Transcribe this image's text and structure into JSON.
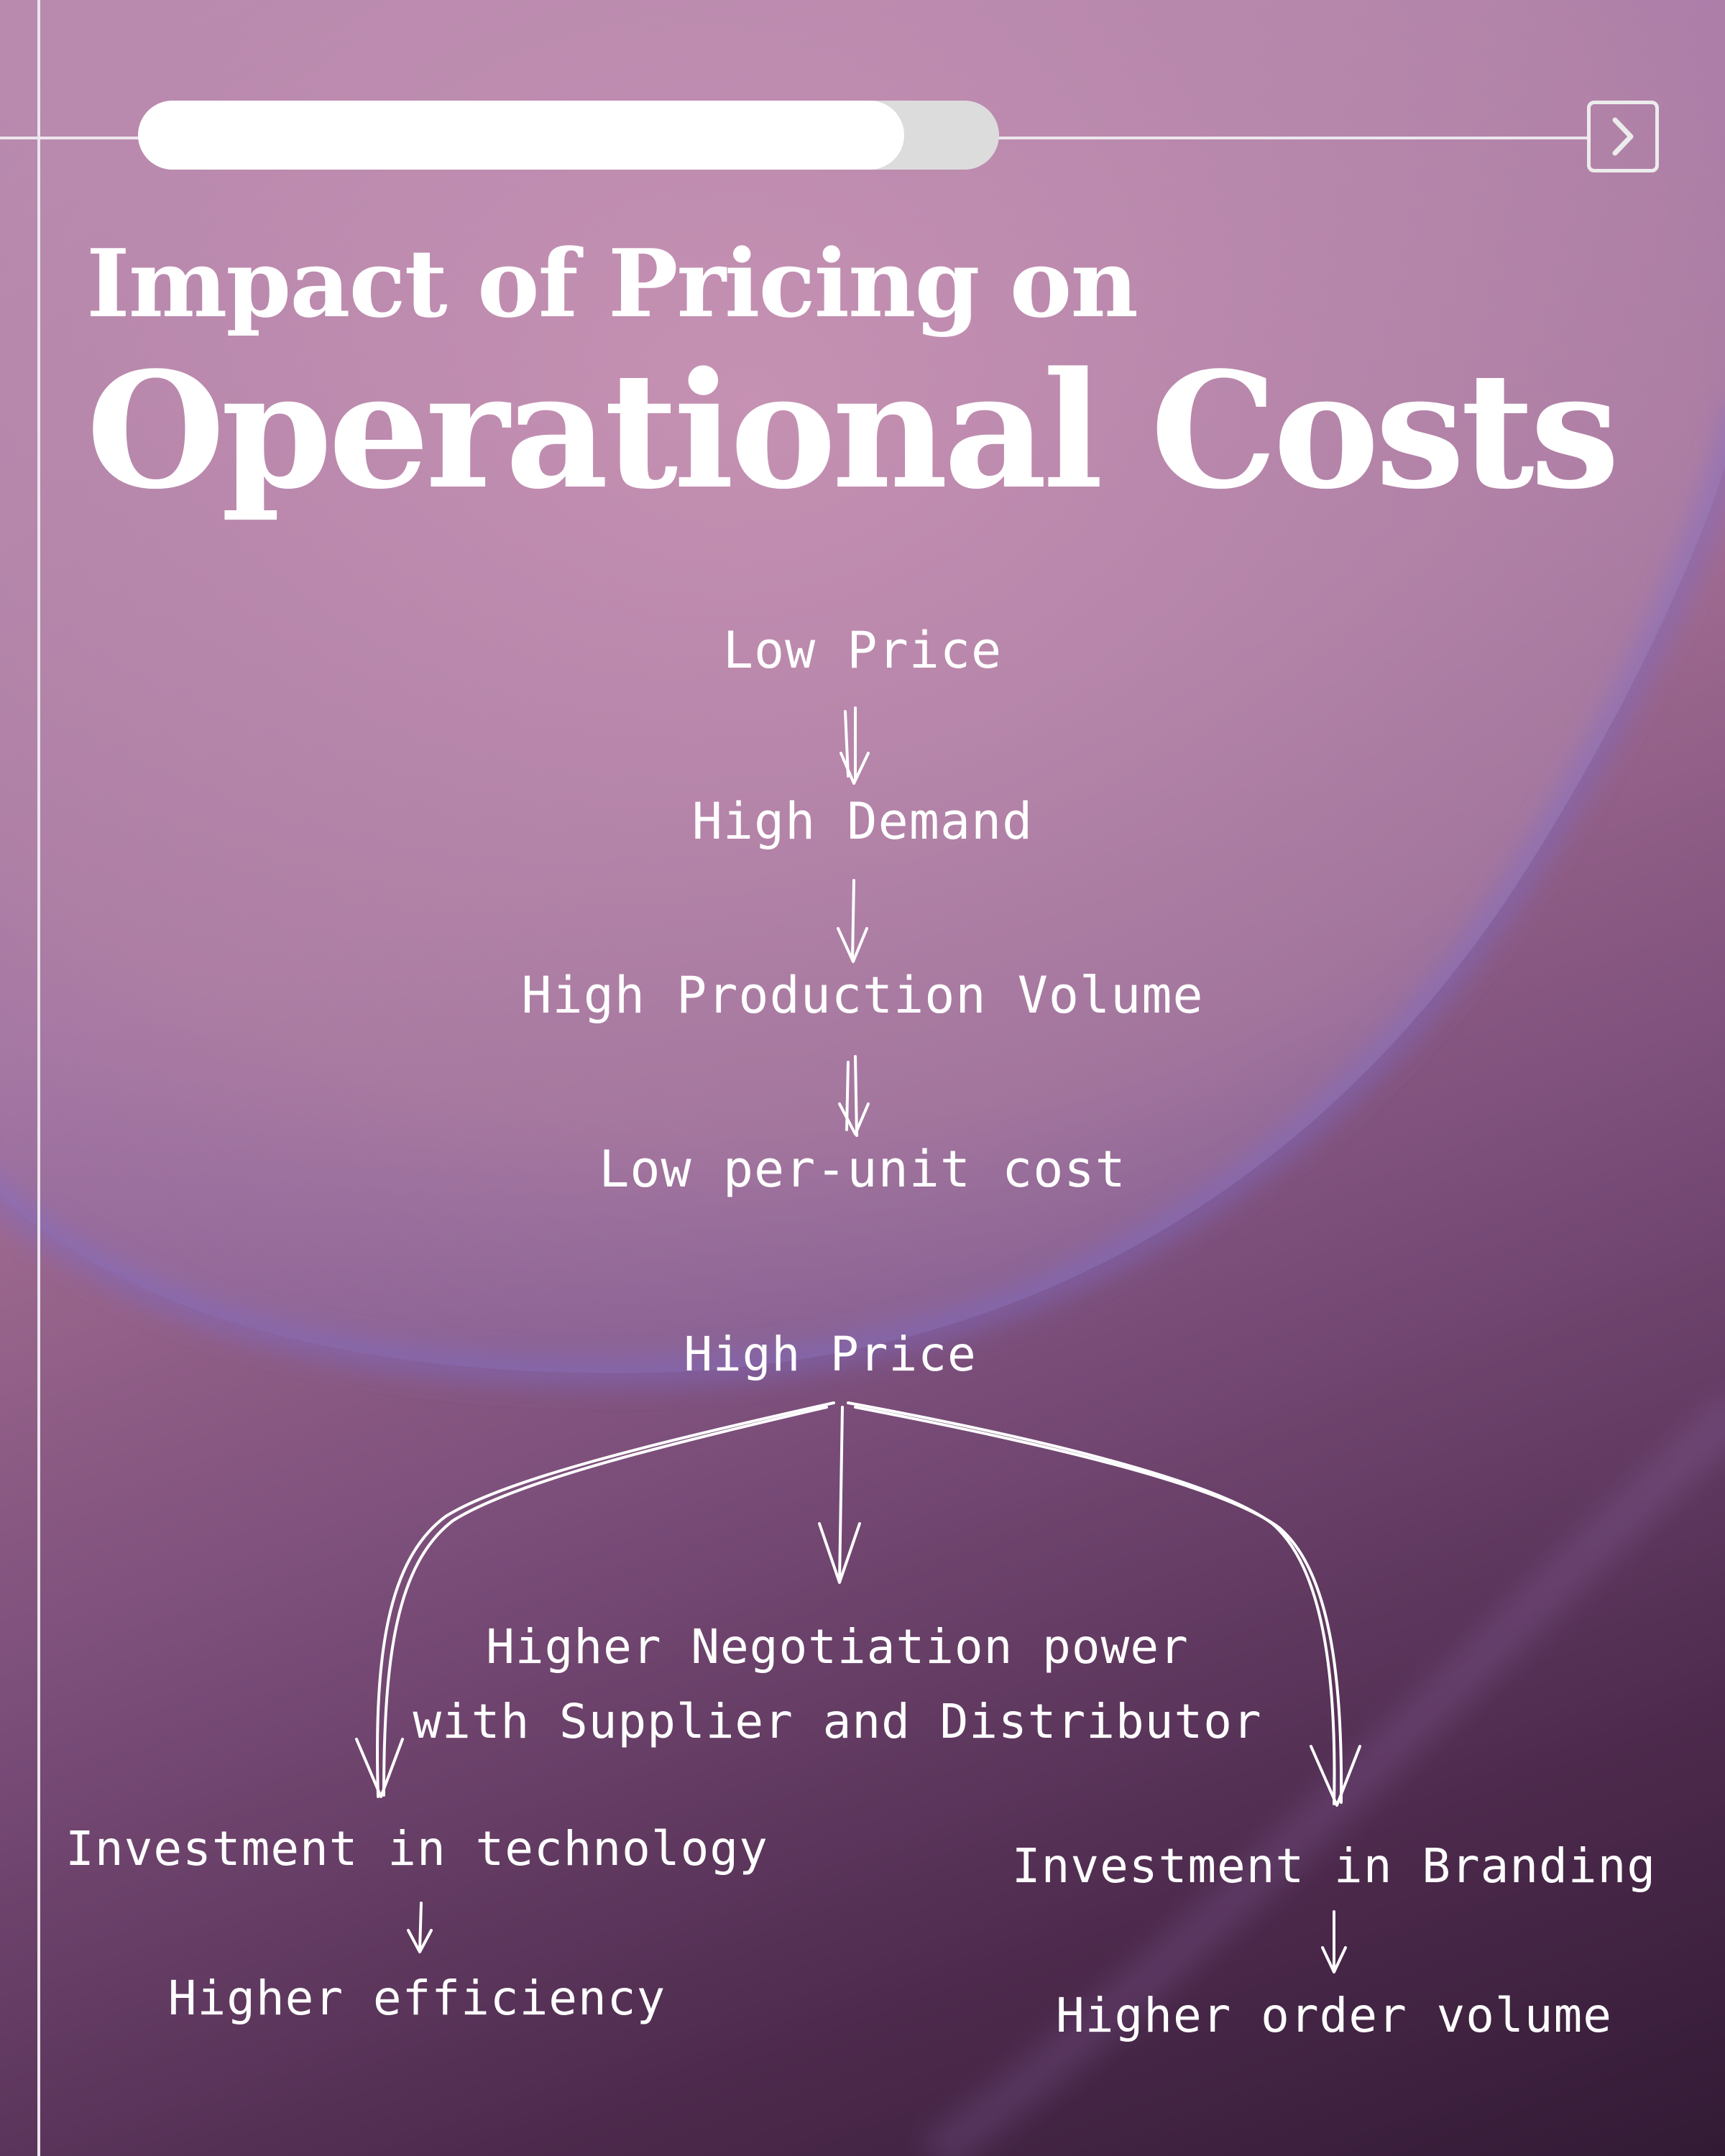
{
  "progress": {
    "fraction": 0.89
  },
  "nav": {
    "next_icon": "chevron-right-icon"
  },
  "title": {
    "line1": "Impact of Pricing on",
    "line2": "Operational Costs"
  },
  "low_price_chain": [
    "Low Price",
    "High Demand",
    "High Production Volume",
    "Low per-unit cost"
  ],
  "high_price": {
    "root": "High Price",
    "center_line1": "Higher Negotiation power",
    "center_line2": "with Supplier and Distributor",
    "left": "Investment in technology",
    "left_result": "Higher efficiency",
    "right": "Investment in Branding",
    "right_result": "Higher order volume"
  },
  "colors": {
    "text": "#ffffff",
    "progress_fill": "#ffffff",
    "progress_track": "#dcdcdc",
    "bg_light": "#c68fb0",
    "bg_dark": "#321a34",
    "accent_glow": "#7e6bc7"
  }
}
